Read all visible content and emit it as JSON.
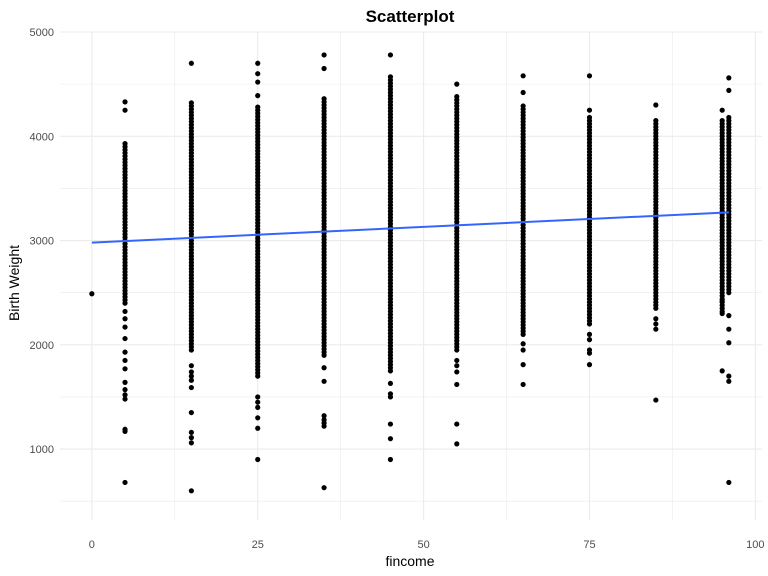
{
  "chart_data": {
    "type": "scatter",
    "title": "Scatterplot",
    "xlabel": "fincome",
    "ylabel": "Birth Weight",
    "xlim": [
      -4.8,
      101
    ],
    "ylim": [
      320,
      5000
    ],
    "x_ticks": [
      0,
      25,
      50,
      75,
      100
    ],
    "y_ticks": [
      1000,
      2000,
      3000,
      4000,
      5000
    ],
    "x_tick_labels": [
      "0",
      "25",
      "50",
      "75",
      "100"
    ],
    "y_tick_labels": [
      "1000",
      "2000",
      "3000",
      "4000",
      "5000"
    ],
    "grid": true,
    "colors": {
      "points": "#000000",
      "trend": "#3366FF",
      "grid": "#ebebeb"
    },
    "columns": [
      {
        "x": 0,
        "dense_min": 2490,
        "dense_max": 2490,
        "outliers": [
          2490
        ]
      },
      {
        "x": 5,
        "dense_min": 2400,
        "dense_max": 3950,
        "outliers": [
          680,
          1170,
          1190,
          1480,
          1520,
          1570,
          1640,
          1770,
          1850,
          1930,
          2060,
          2170,
          2250,
          2320,
          4250,
          4330
        ]
      },
      {
        "x": 15,
        "dense_min": 1950,
        "dense_max": 4330,
        "outliers": [
          600,
          1060,
          1110,
          1160,
          1350,
          1590,
          1660,
          1700,
          1740,
          1800,
          4700
        ]
      },
      {
        "x": 25,
        "dense_min": 1700,
        "dense_max": 4280,
        "outliers": [
          900,
          1200,
          1300,
          1400,
          1450,
          1500,
          4390,
          4520,
          4600,
          4700
        ]
      },
      {
        "x": 35,
        "dense_min": 1900,
        "dense_max": 4380,
        "outliers": [
          630,
          1220,
          1250,
          1280,
          1320,
          1650,
          1780,
          4650,
          4780
        ]
      },
      {
        "x": 45,
        "dense_min": 1750,
        "dense_max": 4580,
        "outliers": [
          900,
          1100,
          1240,
          1500,
          1530,
          1630,
          4780
        ]
      },
      {
        "x": 55,
        "dense_min": 1950,
        "dense_max": 4400,
        "outliers": [
          1050,
          1240,
          1620,
          1740,
          1800,
          1850,
          4500
        ]
      },
      {
        "x": 65,
        "dense_min": 2100,
        "dense_max": 4300,
        "outliers": [
          1620,
          1810,
          1950,
          2010,
          4420,
          4580
        ]
      },
      {
        "x": 75,
        "dense_min": 2200,
        "dense_max": 4200,
        "outliers": [
          1810,
          1920,
          1950,
          2050,
          2100,
          4250,
          4580
        ]
      },
      {
        "x": 85,
        "dense_min": 2350,
        "dense_max": 4150,
        "outliers": [
          1470,
          2150,
          2200,
          2250,
          4300
        ]
      },
      {
        "x": 95,
        "dense_min": 2320,
        "dense_max": 4150,
        "outliers": [
          1750,
          2300,
          2420,
          4250
        ]
      },
      {
        "x": 96,
        "dense_min": 2500,
        "dense_max": 4200,
        "outliers": [
          680,
          1650,
          1700,
          2020,
          2150,
          2280,
          4440,
          4560
        ]
      }
    ],
    "trend_line": {
      "x": [
        0,
        96
      ],
      "y": [
        2980,
        3270
      ]
    }
  }
}
